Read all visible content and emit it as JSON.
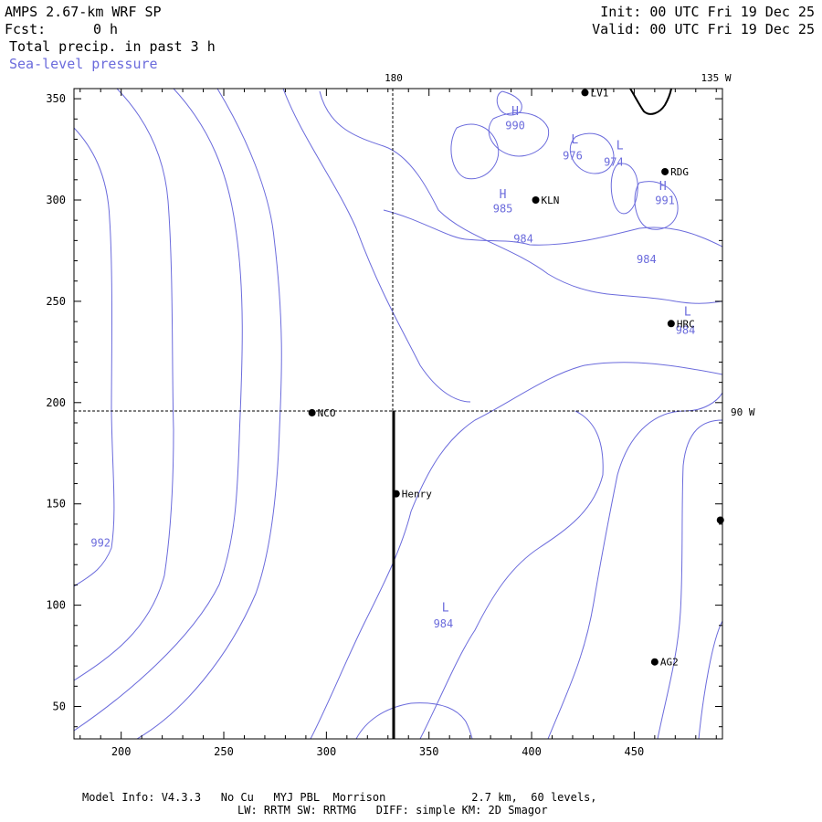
{
  "header": {
    "model": "AMPS 2.67-km WRF SP",
    "fcst_label": "Fcst:",
    "fcst_value": "0 h",
    "field": "Total precip. in past 3 h",
    "overlay": "Sea-level pressure",
    "init": "Init: 00 UTC Fri 19 Dec 25",
    "valid": "Valid: 00 UTC Fri 19 Dec 25"
  },
  "footer": {
    "line1": "Model Info: V4.3.3   No Cu   MYJ PBL  Morrison             2.7 km,  60 levels,",
    "line2": "LW: RRTM SW: RRTMG   DIFF: simple KM: 2D Smagor"
  },
  "axes": {
    "x_ticks": [
      "200",
      "250",
      "300",
      "350",
      "400",
      "450"
    ],
    "y_ticks": [
      "350",
      "300",
      "250",
      "200",
      "150",
      "100",
      "50"
    ]
  },
  "meridian_labels": [
    "180",
    "135 W",
    "90 W"
  ],
  "stations": [
    {
      "label": "NCO",
      "x": 293,
      "y": 195
    },
    {
      "label": "Henry",
      "x": 334,
      "y": 155
    },
    {
      "label": "KLN",
      "x": 402,
      "y": 300
    },
    {
      "label": "RDG",
      "x": 465,
      "y": 314
    },
    {
      "label": "HRC",
      "x": 468,
      "y": 239
    },
    {
      "label": "AG2",
      "x": 460,
      "y": 72
    },
    {
      "label": "LV1",
      "x": 426,
      "y": 353
    },
    {
      "label": "",
      "x": 492,
      "y": 142
    }
  ],
  "pressure_labels": [
    {
      "text": "992",
      "x": 190,
      "y": 129
    },
    {
      "text": "984",
      "x": 357,
      "y": 89
    },
    {
      "text": "985",
      "x": 386,
      "y": 294
    },
    {
      "text": "984",
      "x": 396,
      "y": 279
    },
    {
      "text": "990",
      "x": 392,
      "y": 335
    },
    {
      "text": "976",
      "x": 420,
      "y": 320
    },
    {
      "text": "974",
      "x": 440,
      "y": 317
    },
    {
      "text": "991",
      "x": 465,
      "y": 298
    },
    {
      "text": "984",
      "x": 456,
      "y": 269
    },
    {
      "text": "984",
      "x": 475,
      "y": 234
    }
  ],
  "pressure_centers": [
    {
      "text": "L",
      "x": 358,
      "y": 97
    },
    {
      "text": "H",
      "x": 386,
      "y": 301
    },
    {
      "text": "H",
      "x": 392,
      "y": 342
    },
    {
      "text": "L",
      "x": 421,
      "y": 328
    },
    {
      "text": "L",
      "x": 443,
      "y": 325
    },
    {
      "text": "H",
      "x": 464,
      "y": 305
    },
    {
      "text": "L",
      "x": 476,
      "y": 243
    }
  ],
  "colors": {
    "contour": "#6b6bdc",
    "axis": "#000000",
    "marker": "#000000"
  }
}
